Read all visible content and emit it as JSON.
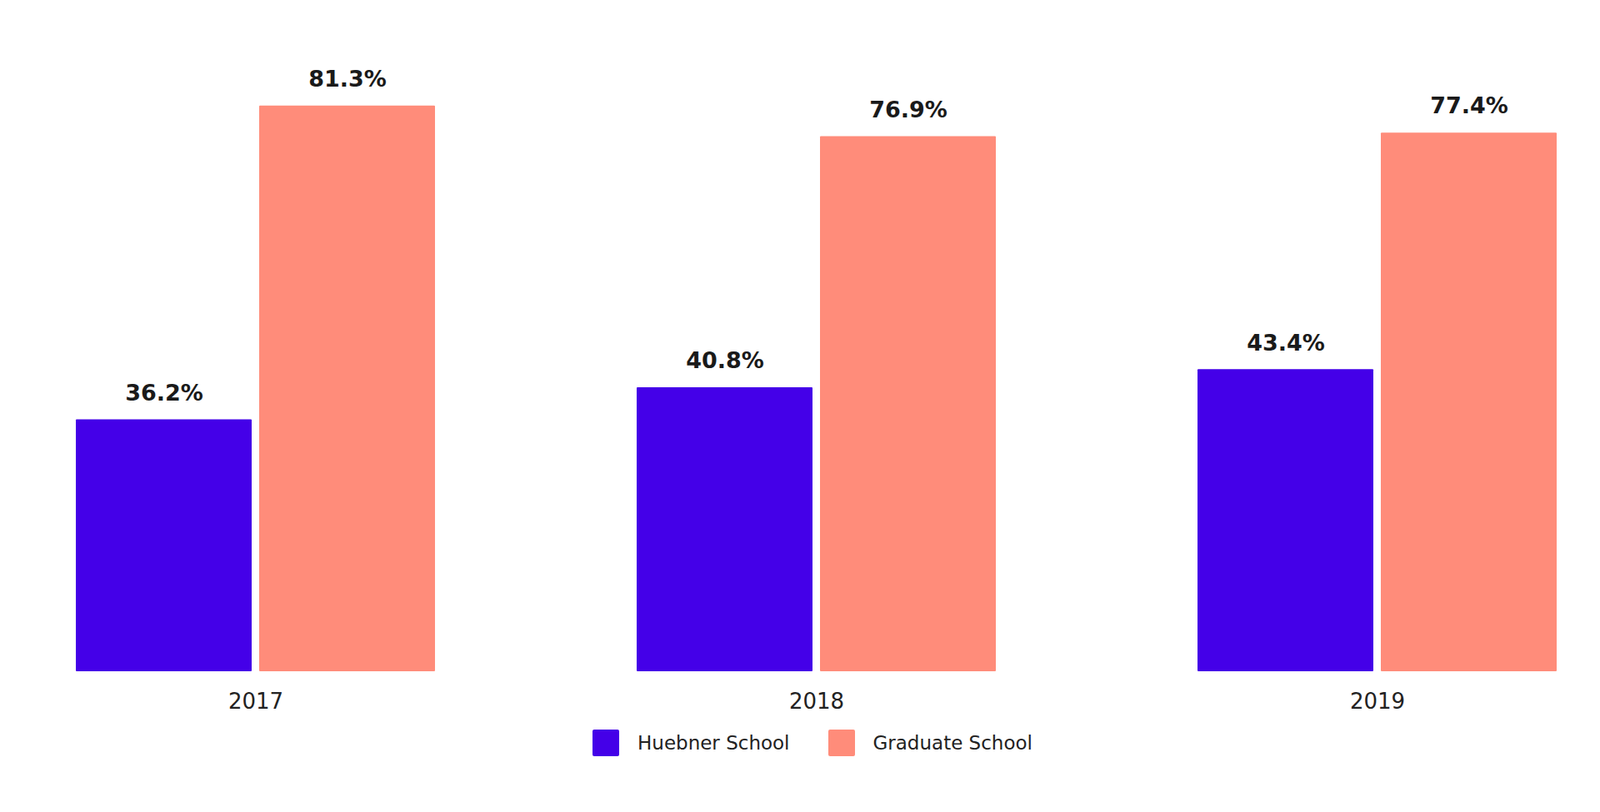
{
  "chart_data": {
    "type": "bar",
    "categories": [
      "2017",
      "2018",
      "2019"
    ],
    "series": [
      {
        "name": "Huebner School",
        "color": "#4400e8",
        "values": [
          36.2,
          40.8,
          43.4
        ],
        "value_labels": [
          "36.2%",
          "40.8%",
          "43.4%"
        ]
      },
      {
        "name": "Graduate School",
        "color": "#ff8c7a",
        "values": [
          81.3,
          76.9,
          77.4
        ],
        "value_labels": [
          "81.3%",
          "76.9%",
          "77.4%"
        ]
      }
    ],
    "ylim": [
      0,
      90
    ],
    "data_labels": true,
    "tick_labels": "x",
    "legend": "bottom"
  }
}
